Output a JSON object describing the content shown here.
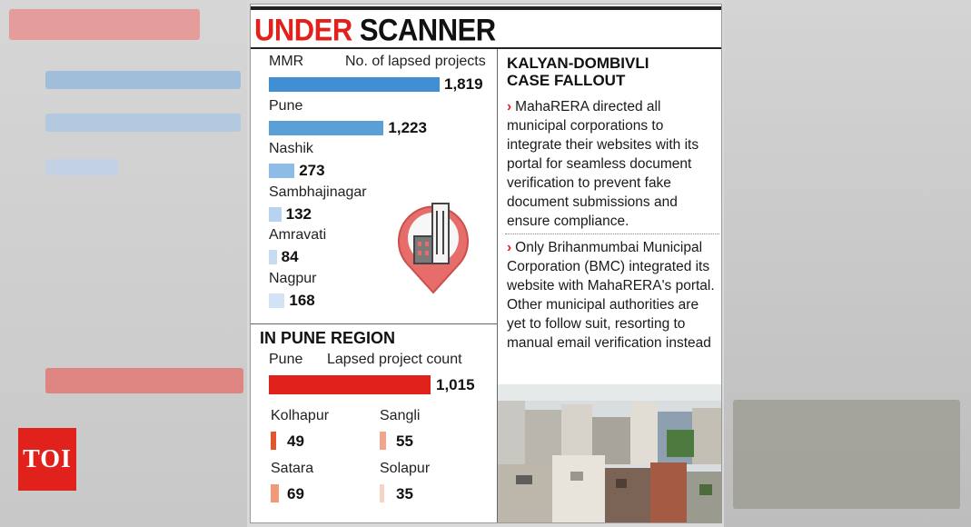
{
  "header": {
    "title_red": "UNDER",
    "title_black": "SCANNER"
  },
  "chart_data": [
    {
      "type": "bar",
      "orientation": "horizontal",
      "legend_label": "MMR",
      "value_header": "No. of lapsed projects",
      "categories": [
        "MMR",
        "Pune",
        "Nashik",
        "Sambhajinagar",
        "Amravati",
        "Nagpur"
      ],
      "values": [
        1819,
        1223,
        273,
        132,
        84,
        168
      ],
      "value_labels": [
        "1,819",
        "1,223",
        "273",
        "132",
        "84",
        "168"
      ],
      "colors": [
        "#3f8fd2",
        "#5a9fd6",
        "#8fbce6",
        "#b7d3ef",
        "#c7dcf2",
        "#d3e3f5"
      ]
    },
    {
      "type": "bar",
      "orientation": "horizontal",
      "title": "IN PUNE REGION",
      "legend_label": "Pune",
      "value_header": "Lapsed project count",
      "categories": [
        "Pune",
        "Kolhapur",
        "Sangli",
        "Satara",
        "Solapur"
      ],
      "values": [
        1015,
        49,
        55,
        69,
        35
      ],
      "value_labels": [
        "1,015",
        "49",
        "55",
        "69",
        "35"
      ],
      "colors": [
        "#e0211c",
        "#e3552e",
        "#f0a58c",
        "#f09a77",
        "#f6d3c4"
      ]
    }
  ],
  "fallout": {
    "heading_line1": "KALYAN-DOMBIVLI",
    "heading_line2": "CASE FALLOUT",
    "bullets": [
      "MahaRERA directed all municipal corporations to integrate their websites with its portal for seamless document verification to prevent fake document submissions and ensure compliance.",
      "Only Brihanmumbai Municipal Corporation (BMC) integrated its website with MahaRERA's portal. Other municipal authorities are yet to follow suit, resorting to manual email verification instead"
    ]
  },
  "icons": {
    "pin": "location-pin-building-icon",
    "arrow": "chevron-right-icon"
  },
  "branding": {
    "logo_text": "TOI",
    "logo_color": "#e0211c"
  },
  "colors": {
    "accent_red": "#e0211c",
    "bar_blue": "#3f8fd2"
  }
}
